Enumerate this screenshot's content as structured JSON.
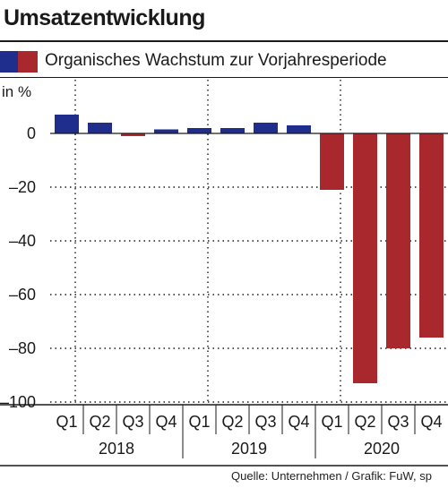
{
  "title": "Umsatzentwicklung",
  "legend": {
    "label": "Organisches Wachstum zur Vorjahresperiode"
  },
  "source": "Quelle: Unternehmen / Grafik: FuW, sp",
  "colors": {
    "positive": "#1f2d8c",
    "negative": "#a8282d"
  },
  "chart_data": {
    "type": "bar",
    "ylabel": "in %",
    "ylim": [
      -100,
      10
    ],
    "yticks": [
      0,
      -20,
      -40,
      -60,
      -80,
      -100
    ],
    "ytick_labels": [
      "0",
      "–20",
      "–40",
      "–60",
      "–80",
      "–100"
    ],
    "categories": [
      "Q1",
      "Q2",
      "Q3",
      "Q4",
      "Q1",
      "Q2",
      "Q3",
      "Q4",
      "Q1",
      "Q2",
      "Q3",
      "Q4"
    ],
    "groups": [
      {
        "label": "2018",
        "count": 4
      },
      {
        "label": "2019",
        "count": 4
      },
      {
        "label": "2020",
        "count": 4
      }
    ],
    "values": [
      7,
      4,
      -1,
      1.5,
      2,
      2,
      4,
      3,
      -21,
      -93,
      -80,
      -76
    ],
    "grid": true
  }
}
